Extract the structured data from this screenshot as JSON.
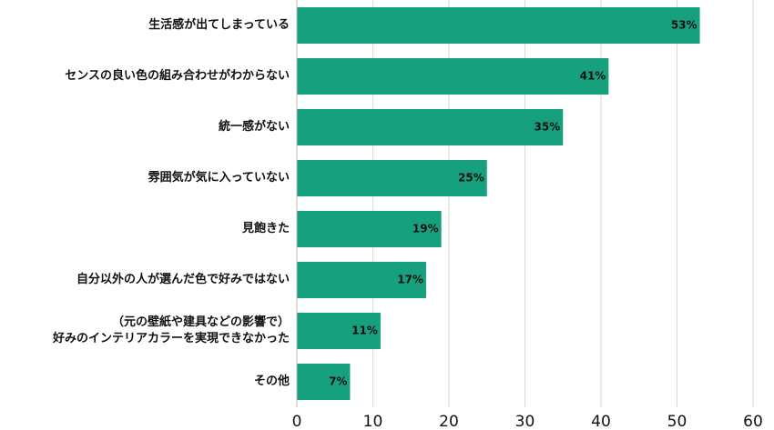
{
  "chart_data": {
    "type": "barh",
    "categories": [
      "生活感が出てしまっている",
      "センスの良い色の組み合わせがわからない",
      "統一感がない",
      "雰囲気が気に入っていない",
      "見飽きた",
      "自分以外の人が選んだ色で好みではない",
      "（元の壁紙や建具などの影響で）\n好みのインテリアカラーを実現できなかった",
      "その他"
    ],
    "values": [
      53,
      41,
      35,
      25,
      19,
      17,
      11,
      7
    ],
    "value_labels": [
      "53%",
      "41%",
      "35%",
      "25%",
      "19%",
      "17%",
      "11%",
      "7%"
    ],
    "color": "#16a07e",
    "xlim": [
      0,
      60
    ],
    "xticks": [
      0,
      10,
      20,
      30,
      40,
      50,
      60
    ],
    "grid": true
  }
}
